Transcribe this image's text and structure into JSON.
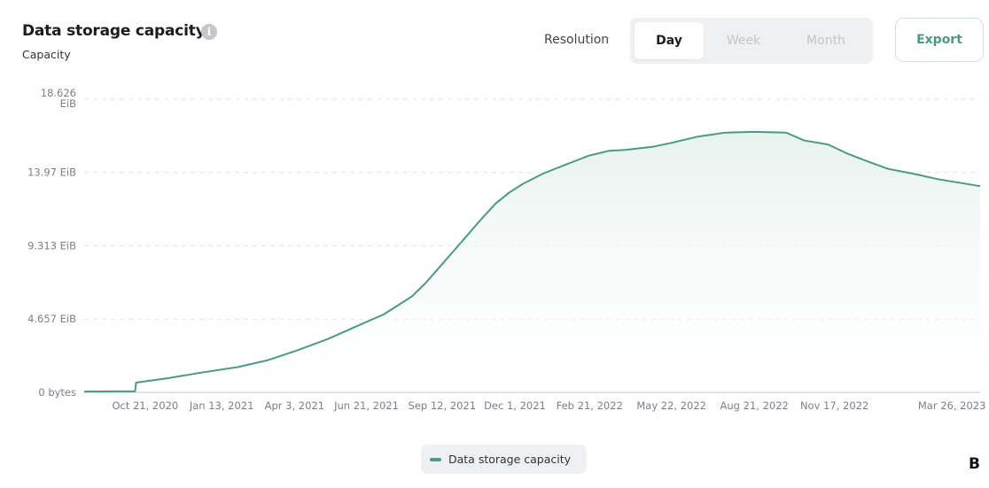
{
  "header": {
    "title": "Data storage capacity",
    "info_icon": "i",
    "subtitle": "Capacity"
  },
  "controls": {
    "resolution_label": "Resolution",
    "options": [
      "Day",
      "Week",
      "Month"
    ],
    "selected": "Day",
    "export_label": "Export"
  },
  "colors": {
    "accent": "#4a9a84",
    "area_fill": "#e8f2ef",
    "grid": "#dfe2e5",
    "axis_text": "#7a8088"
  },
  "corner_label": "B",
  "chart_data": {
    "type": "area",
    "title": "Data storage capacity",
    "ylabel": "Capacity",
    "xlabel": "",
    "y_unit": "EiB",
    "ylim": [
      0,
      18.626
    ],
    "y_ticks": [
      {
        "value": 0,
        "label": "0 bytes"
      },
      {
        "value": 4.657,
        "label": "4.657 EiB"
      },
      {
        "value": 9.313,
        "label": "9.313 EiB"
      },
      {
        "value": 13.97,
        "label": "13.97 EiB"
      },
      {
        "value": 18.626,
        "label": "18.626 EiB"
      }
    ],
    "xlim": [
      "2020-08-15",
      "2023-04-26"
    ],
    "x_ticks": [
      {
        "date": "2020-10-21",
        "label": "Oct 21, 2020"
      },
      {
        "date": "2021-01-13",
        "label": "Jan 13, 2021"
      },
      {
        "date": "2021-04-03",
        "label": "Apr 3, 2021"
      },
      {
        "date": "2021-06-21",
        "label": "Jun 21, 2021"
      },
      {
        "date": "2021-09-12",
        "label": "Sep 12, 2021"
      },
      {
        "date": "2021-12-01",
        "label": "Dec 1, 2021"
      },
      {
        "date": "2022-02-21",
        "label": "Feb 21, 2022"
      },
      {
        "date": "2022-05-22",
        "label": "May 22, 2022"
      },
      {
        "date": "2022-08-21",
        "label": "Aug 21, 2022"
      },
      {
        "date": "2022-11-17",
        "label": "Nov 17, 2022"
      },
      {
        "date": "2023-03-26",
        "label": "Mar 26, 2023"
      }
    ],
    "grid": true,
    "legend_position": "bottom",
    "series": [
      {
        "name": "Data storage capacity",
        "points": [
          [
            "2020-08-15",
            0.05
          ],
          [
            "2020-10-10",
            0.07
          ],
          [
            "2020-10-11",
            0.62
          ],
          [
            "2020-11-15",
            0.9
          ],
          [
            "2020-12-21",
            1.25
          ],
          [
            "2021-01-30",
            1.6
          ],
          [
            "2021-03-05",
            2.05
          ],
          [
            "2021-04-05",
            2.65
          ],
          [
            "2021-05-10",
            3.4
          ],
          [
            "2021-06-10",
            4.2
          ],
          [
            "2021-07-10",
            4.95
          ],
          [
            "2021-08-10",
            6.1
          ],
          [
            "2021-08-25",
            6.95
          ],
          [
            "2021-09-10",
            8.0
          ],
          [
            "2021-09-25",
            9.0
          ],
          [
            "2021-10-10",
            10.0
          ],
          [
            "2021-10-25",
            11.0
          ],
          [
            "2021-11-10",
            12.0
          ],
          [
            "2021-11-25",
            12.7
          ],
          [
            "2021-12-10",
            13.25
          ],
          [
            "2022-01-01",
            13.9
          ],
          [
            "2022-01-25",
            14.45
          ],
          [
            "2022-02-21",
            15.05
          ],
          [
            "2022-03-15",
            15.35
          ],
          [
            "2022-04-01",
            15.4
          ],
          [
            "2022-05-01",
            15.6
          ],
          [
            "2022-05-22",
            15.85
          ],
          [
            "2022-06-20",
            16.25
          ],
          [
            "2022-07-20",
            16.5
          ],
          [
            "2022-08-21",
            16.55
          ],
          [
            "2022-09-25",
            16.5
          ],
          [
            "2022-10-15",
            16.0
          ],
          [
            "2022-11-10",
            15.75
          ],
          [
            "2022-11-30",
            15.2
          ],
          [
            "2022-12-20",
            14.75
          ],
          [
            "2023-01-15",
            14.2
          ],
          [
            "2023-02-15",
            13.85
          ],
          [
            "2023-03-10",
            13.55
          ],
          [
            "2023-04-26",
            13.1
          ]
        ]
      }
    ]
  }
}
